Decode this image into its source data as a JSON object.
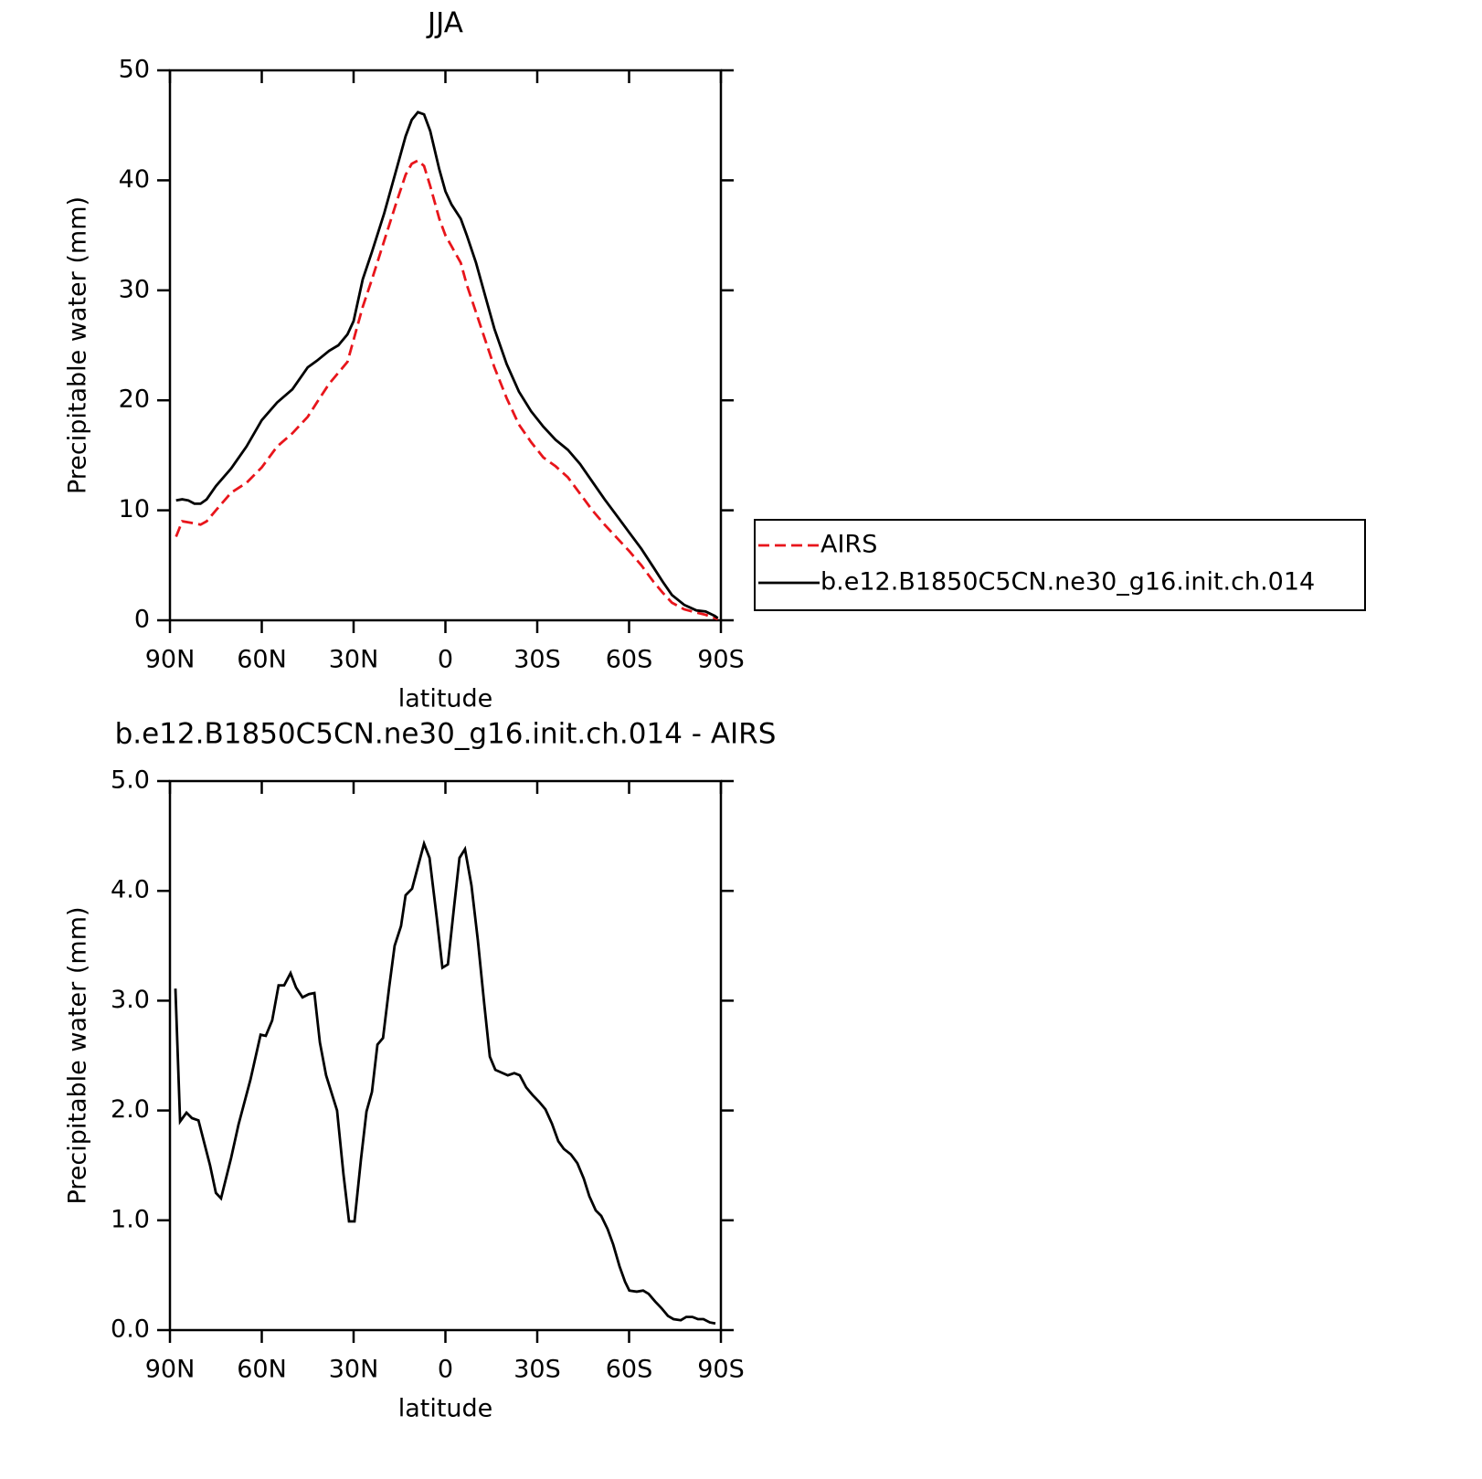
{
  "chart_data": [
    {
      "type": "line",
      "title": "JJA",
      "xlabel": "latitude",
      "ylabel": "Precipitable water (mm)",
      "xlim": [
        90,
        -90
      ],
      "xticks": [
        {
          "value": 90,
          "label": "90N"
        },
        {
          "value": 60,
          "label": "60N"
        },
        {
          "value": 30,
          "label": "30N"
        },
        0,
        {
          "value": -30,
          "label": "30S"
        },
        {
          "value": -60,
          "label": "60S"
        },
        {
          "value": -90,
          "label": "90S"
        }
      ],
      "ylim": [
        0,
        50
      ],
      "yticks": [
        0,
        10,
        20,
        30,
        40,
        50
      ],
      "legend": "right",
      "x": [
        88,
        86,
        84,
        82,
        80,
        78,
        75,
        70,
        65,
        60,
        55,
        50,
        45,
        42,
        38,
        35,
        32,
        30,
        27,
        24,
        20,
        16,
        13,
        11,
        9,
        7,
        5,
        2,
        0,
        -2,
        -5,
        -7,
        -10,
        -13,
        -16,
        -20,
        -24,
        -28,
        -32,
        -36,
        -40,
        -44,
        -48,
        -52,
        -56,
        -60,
        -64,
        -68,
        -71,
        -74,
        -78,
        -82,
        -85,
        -88,
        -89
      ],
      "series": [
        {
          "name": "AIRS",
          "color": "#e8151b",
          "line_style": "dashed",
          "values": [
            7.6,
            9.0,
            8.9,
            8.8,
            8.7,
            9.0,
            10.0,
            11.6,
            12.5,
            13.9,
            15.8,
            17.0,
            18.5,
            19.8,
            21.5,
            22.5,
            23.5,
            25.5,
            28.5,
            31.0,
            34.5,
            38.0,
            40.5,
            41.5,
            41.8,
            41.3,
            39.5,
            36.5,
            35.0,
            34.0,
            32.5,
            30.5,
            28.0,
            25.5,
            23.0,
            20.2,
            17.8,
            16.2,
            14.8,
            14.0,
            13.0,
            11.5,
            10.0,
            8.7,
            7.5,
            6.3,
            5.0,
            3.5,
            2.5,
            1.6,
            1.0,
            0.7,
            0.5,
            0.2,
            0.1
          ]
        },
        {
          "name": "b.e12.B1850C5CN.ne30_g16.init.ch.014",
          "color": "#000000",
          "line_style": "solid",
          "values": [
            10.9,
            11.0,
            10.9,
            10.6,
            10.6,
            11.0,
            12.2,
            13.8,
            15.8,
            18.2,
            19.8,
            21.0,
            23.0,
            23.6,
            24.5,
            25.0,
            26.0,
            27.2,
            31.0,
            33.5,
            37.0,
            41.0,
            44.0,
            45.5,
            46.2,
            46.0,
            44.5,
            41.0,
            39.0,
            37.8,
            36.5,
            35.0,
            32.5,
            29.5,
            26.5,
            23.3,
            20.8,
            19.0,
            17.6,
            16.4,
            15.5,
            14.2,
            12.6,
            11.0,
            9.5,
            8.0,
            6.5,
            4.8,
            3.5,
            2.3,
            1.4,
            0.9,
            0.8,
            0.4,
            0.2
          ]
        }
      ]
    },
    {
      "type": "line",
      "title": "b.e12.B1850C5CN.ne30_g16.init.ch.014 - AIRS",
      "xlabel": "latitude",
      "ylabel": "Precipitable water (mm)",
      "xlim": [
        90,
        -90
      ],
      "xticks": [
        {
          "value": 90,
          "label": "90N"
        },
        {
          "value": 60,
          "label": "60N"
        },
        {
          "value": 30,
          "label": "30N"
        },
        0,
        {
          "value": -30,
          "label": "30S"
        },
        {
          "value": -60,
          "label": "60S"
        },
        {
          "value": -90,
          "label": "90S"
        }
      ],
      "ylim": [
        0,
        5
      ],
      "yticks": [
        {
          "value": 0,
          "label": "0.0"
        },
        {
          "value": 1,
          "label": "1.0"
        },
        {
          "value": 2,
          "label": "2.0"
        },
        {
          "value": 3,
          "label": "3.0"
        },
        {
          "value": 4,
          "label": "4.0"
        },
        {
          "value": 5,
          "label": "5.0"
        }
      ],
      "x": [
        88.2,
        86.7,
        84.6,
        82.8,
        80.7,
        76.9,
        75,
        73.3,
        70,
        67.6,
        63.7,
        60.4,
        58.7,
        56.6,
        54.5,
        52.7,
        50.6,
        48.8,
        46.7,
        44.6,
        42.8,
        41,
        39,
        35.4,
        33.3,
        31.5,
        29.7,
        27.6,
        25.8,
        24,
        22.2,
        20.4,
        18.4,
        16.6,
        14.5,
        13,
        10.9,
        8.8,
        7,
        5.2,
        2.8,
        1,
        -0.8,
        -2.8,
        -4.6,
        -6.4,
        -8.5,
        -10.6,
        -12.7,
        -14.5,
        -16.3,
        -20.4,
        -22.5,
        -24.3,
        -26.4,
        -28.5,
        -30.6,
        -32.7,
        -34.8,
        -36.9,
        -38.7,
        -41,
        -43.1,
        -45.2,
        -47,
        -49.1,
        -50.9,
        -53,
        -54.8,
        -56.9,
        -58.7,
        -60.1,
        -62.5,
        -64.6,
        -66.4,
        -68.5,
        -70.6,
        -72.7,
        -74.5,
        -76.9,
        -78.7,
        -80.7,
        -82.5,
        -84.3,
        -86.4,
        -88.2
      ],
      "series": [
        {
          "color": "#000000",
          "line_style": "solid",
          "values": [
            3.11,
            1.9,
            1.98,
            1.93,
            1.91,
            1.5,
            1.25,
            1.2,
            1.57,
            1.87,
            2.28,
            2.69,
            2.68,
            2.82,
            3.14,
            3.14,
            3.25,
            3.12,
            3.03,
            3.06,
            3.07,
            2.62,
            2.32,
            2.0,
            1.42,
            0.99,
            0.99,
            1.55,
            1.99,
            2.17,
            2.6,
            2.66,
            3.12,
            3.5,
            3.68,
            3.96,
            4.02,
            4.24,
            4.43,
            4.3,
            3.75,
            3.3,
            3.33,
            3.85,
            4.3,
            4.38,
            4.05,
            3.55,
            2.97,
            2.49,
            2.37,
            2.32,
            2.34,
            2.32,
            2.21,
            2.14,
            2.08,
            2.01,
            1.88,
            1.72,
            1.65,
            1.6,
            1.52,
            1.38,
            1.22,
            1.09,
            1.04,
            0.92,
            0.78,
            0.58,
            0.44,
            0.36,
            0.35,
            0.36,
            0.33,
            0.26,
            0.2,
            0.13,
            0.1,
            0.09,
            0.12,
            0.12,
            0.1,
            0.1,
            0.07,
            0.06
          ]
        }
      ]
    }
  ]
}
